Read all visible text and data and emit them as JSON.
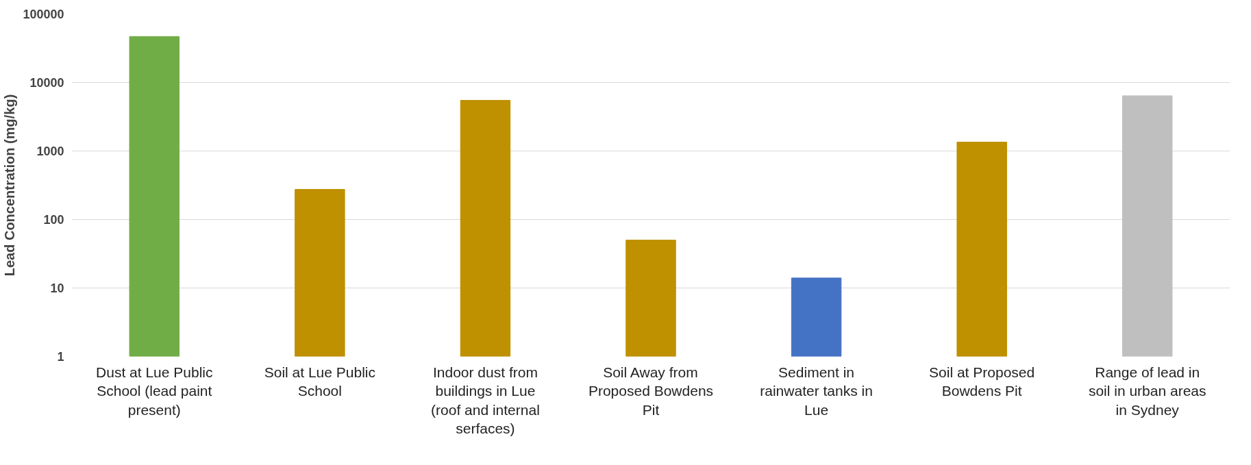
{
  "chart_data": {
    "type": "bar",
    "ylabel": "Lead Concentration (mg/kg)",
    "categories": [
      "Dust at Lue Public School (lead paint present)",
      "Soil at Lue Public School",
      "Indoor dust from buildings in Lue (roof and internal serfaces)",
      "Soil Away from Proposed Bowdens Pit",
      "Sediment in rainwater tanks in Lue",
      "Soil at Proposed Bowdens Pit",
      "Range of lead in soil in urban areas in Sydney"
    ],
    "values": [
      47000,
      275,
      5500,
      50,
      14,
      1350,
      6400
    ],
    "colors": [
      "#70ad47",
      "#bf9000",
      "#bf9000",
      "#bf9000",
      "#4472c4",
      "#bf9000",
      "#bfbfbf"
    ],
    "log": "y",
    "ylim": [
      1,
      100000
    ],
    "yticks": [
      1,
      10,
      100,
      1000,
      10000,
      100000
    ],
    "grid": "y"
  }
}
